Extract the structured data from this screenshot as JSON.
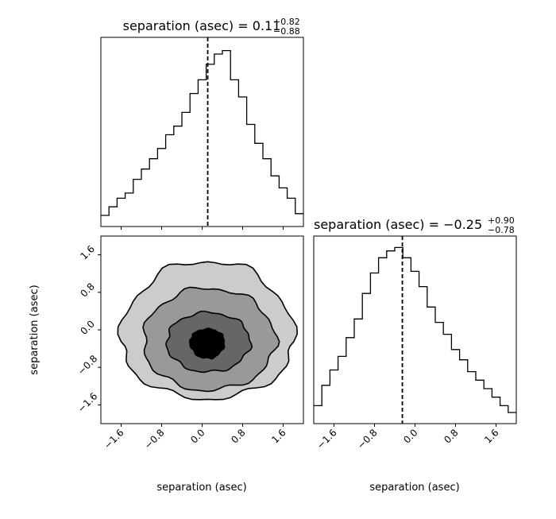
{
  "chart_data": [
    {
      "type": "histogram",
      "panel": "top-left",
      "title_text": "separation (asec) = 0.11",
      "title_sup": "+0.82",
      "title_sub": "−0.88",
      "marker_line": 0.11,
      "xlim": [
        -2.0,
        2.0
      ],
      "bin_edges": [
        -2.0,
        -1.84,
        -1.68,
        -1.52,
        -1.36,
        -1.2,
        -1.04,
        -0.88,
        -0.72,
        -0.56,
        -0.4,
        -0.24,
        -0.08,
        0.08,
        0.24,
        0.4,
        0.56,
        0.72,
        0.88,
        1.04,
        1.2,
        1.36,
        1.52,
        1.68,
        1.84,
        2.0
      ],
      "counts": [
        0.0,
        0.05,
        0.1,
        0.13,
        0.21,
        0.27,
        0.33,
        0.39,
        0.47,
        0.52,
        0.6,
        0.71,
        0.79,
        0.88,
        0.94,
        0.96,
        0.79,
        0.69,
        0.53,
        0.42,
        0.33,
        0.23,
        0.16,
        0.1,
        0.01
      ]
    },
    {
      "type": "histogram",
      "panel": "bottom-right",
      "title_text": "separation (asec) = −0.25",
      "title_sup": "+0.90",
      "title_sub": "−0.78",
      "marker_line": -0.25,
      "xlim": [
        -2.0,
        2.0
      ],
      "xlabel": "separation (asec)",
      "xticks": [
        "−1.6",
        "−0.8",
        "0.0",
        "0.8",
        "1.6"
      ],
      "xtick_values": [
        -1.6,
        -0.8,
        0.0,
        0.8,
        1.6
      ],
      "bin_edges": [
        -2.0,
        -1.84,
        -1.68,
        -1.52,
        -1.36,
        -1.2,
        -1.04,
        -0.88,
        -0.72,
        -0.56,
        -0.4,
        -0.24,
        -0.08,
        0.08,
        0.24,
        0.4,
        0.56,
        0.72,
        0.88,
        1.04,
        1.2,
        1.36,
        1.52,
        1.68,
        1.84,
        2.0
      ],
      "counts": [
        0.04,
        0.16,
        0.25,
        0.33,
        0.44,
        0.55,
        0.7,
        0.82,
        0.91,
        0.95,
        0.97,
        0.91,
        0.83,
        0.74,
        0.62,
        0.53,
        0.46,
        0.37,
        0.31,
        0.24,
        0.19,
        0.14,
        0.09,
        0.04,
        0.0
      ]
    },
    {
      "type": "contour",
      "panel": "bottom-left",
      "xlim": [
        -2.0,
        2.0
      ],
      "ylim": [
        -2.0,
        2.0
      ],
      "xlabel": "separation (asec)",
      "ylabel": "separation (asec)",
      "xticks": [
        "−1.6",
        "−0.8",
        "0.0",
        "0.8",
        "1.6"
      ],
      "xtick_values": [
        -1.6,
        -0.8,
        0.0,
        0.8,
        1.6
      ],
      "yticks": [
        "−1.6",
        "−0.8",
        "0.0",
        "0.8",
        "1.6"
      ],
      "ytick_values": [
        -1.6,
        -0.8,
        0.0,
        0.8,
        1.6
      ],
      "center": [
        0.11,
        -0.25
      ],
      "fill_colors": [
        "#cccccc",
        "#999999",
        "#666666",
        "#000000"
      ],
      "levels": [
        {
          "rx": [
            1.71,
            1.7
          ],
          "ry": [
            1.22,
            1.72
          ]
        },
        {
          "rx": [
            1.27,
            1.34
          ],
          "ry": [
            1.04,
            1.14
          ]
        },
        {
          "rx": [
            0.81,
            0.84
          ],
          "ry": [
            0.65,
            0.62
          ]
        },
        {
          "rx": [
            0.35,
            0.33
          ],
          "ry": [
            0.36,
            0.27
          ]
        }
      ]
    }
  ]
}
